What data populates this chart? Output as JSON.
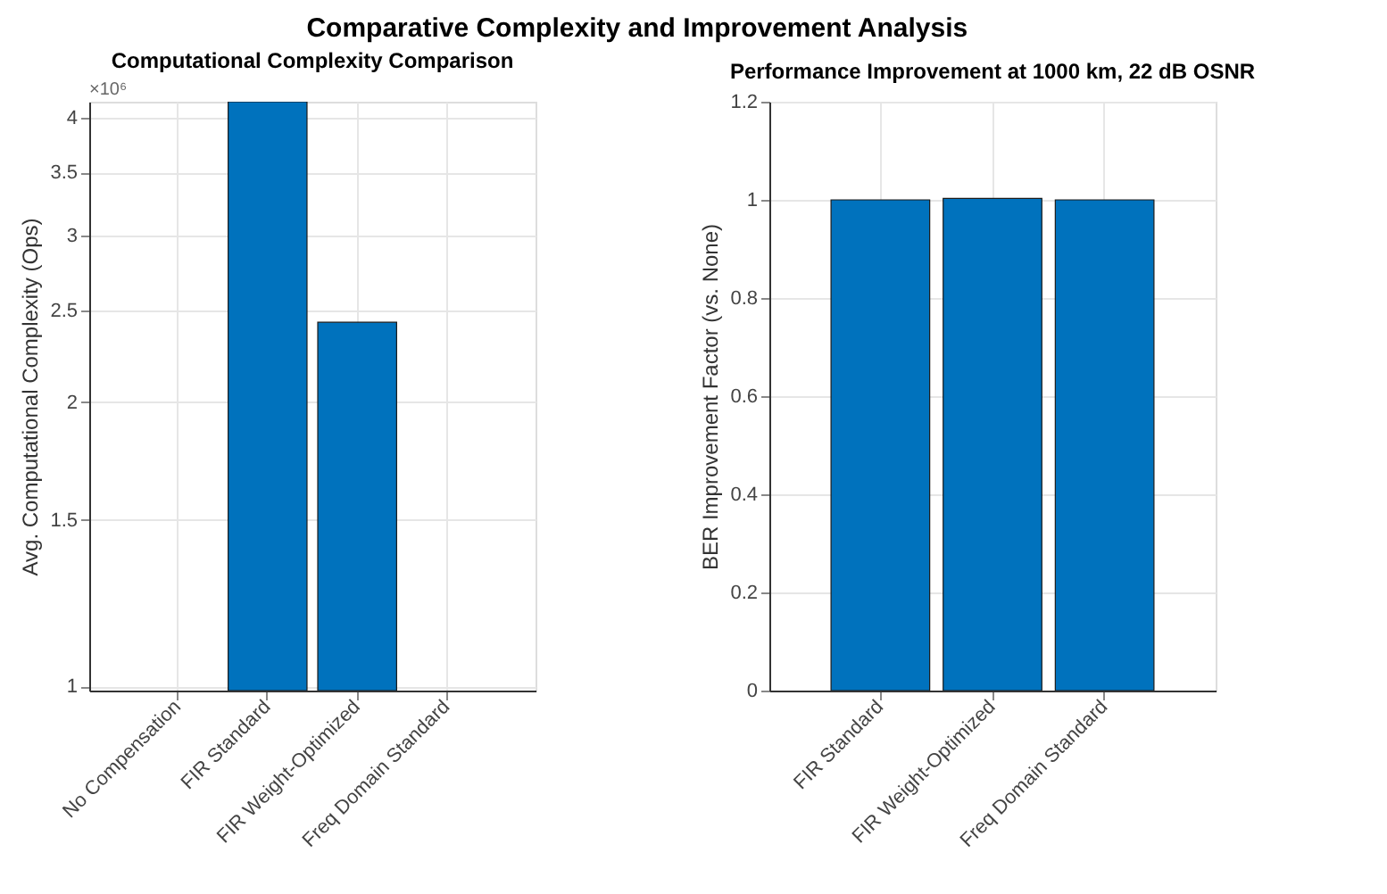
{
  "chart_data": [
    {
      "type": "other",
      "title": "Comparative Complexity and Improvement Analysis"
    },
    {
      "type": "bar",
      "title": "Computational Complexity Comparison",
      "ylabel": "Avg. Computational Complexity (Ops)",
      "categories": [
        "No Compensation",
        "FIR Standard",
        "FIR Weight-Optimized",
        "Freq Domain Standard"
      ],
      "values": [
        null,
        4.16,
        2.43,
        null
      ],
      "color": "#0072bd",
      "log": true,
      "ylim": [
        0.99,
        4.16
      ],
      "yticks": [
        1,
        1.5,
        2,
        2.5,
        3,
        3.5,
        4
      ],
      "grid": true,
      "annotations": [
        "×10⁶"
      ]
    },
    {
      "type": "bar",
      "title": "Performance Improvement at 1000 km, 22 dB OSNR",
      "ylabel": "BER Improvement Factor (vs. None)",
      "categories": [
        "FIR Standard",
        "FIR Weight-Optimized",
        "Freq Domain Standard"
      ],
      "values": [
        1.0,
        1.003,
        1.0
      ],
      "color": "#0072bd",
      "ylim": [
        0,
        1.2
      ],
      "yticks": [
        0,
        0.2,
        0.4,
        0.6,
        0.8,
        1,
        1.2
      ],
      "grid": true
    }
  ]
}
